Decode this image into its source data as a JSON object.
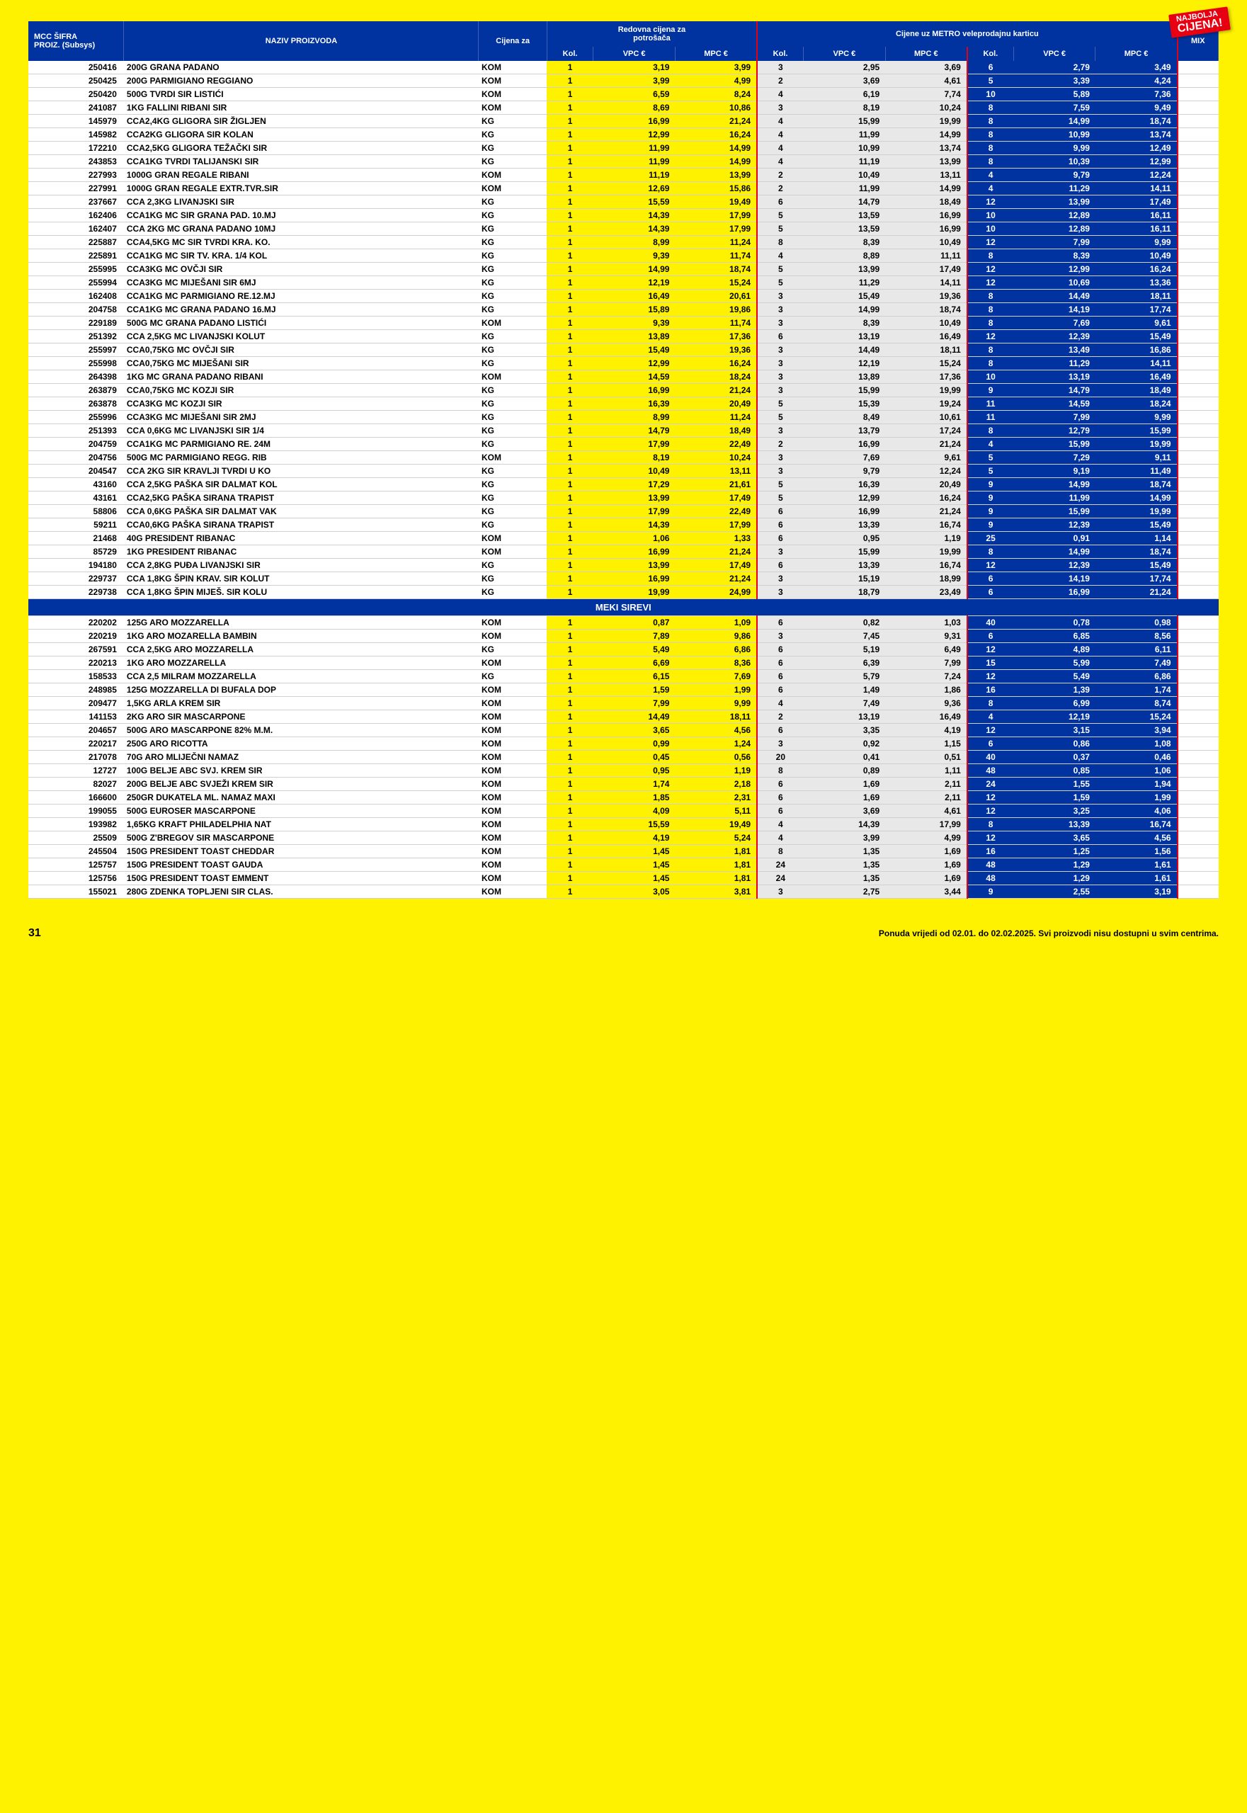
{
  "badge": {
    "line1": "NAJBOLJA",
    "line2": "CIJENA!"
  },
  "headers": {
    "sifra1": "MCC ŠIFRA",
    "sifra2": "PROIZ. (Subsys)",
    "naziv": "NAZIV PROIZVODA",
    "cijenaza": "Cijena za",
    "redovna1": "Redovna cijena za",
    "redovna2": "potrošača",
    "metro": "Cijene uz METRO veleprodajnu karticu",
    "kol": "Kol.",
    "vpc": "VPC €",
    "mpc": "MPC €",
    "mix": "MIX"
  },
  "section2": "MEKI SIREVI",
  "footer": {
    "page": "31",
    "note": "Ponuda vrijedi od 02.01. do 02.02.2025. Svi proizvodi nisu dostupni u svim centrima."
  },
  "rows1": [
    {
      "s": "250416",
      "n": "200G GRANA PADANO",
      "u": "KOM",
      "k1": "1",
      "v1": "3,19",
      "m1": "3,99",
      "k2": "3",
      "v2": "2,95",
      "m2": "3,69",
      "k3": "6",
      "v3": "2,79",
      "m3": "3,49"
    },
    {
      "s": "250425",
      "n": "200G PARMIGIANO REGGIANO",
      "u": "KOM",
      "k1": "1",
      "v1": "3,99",
      "m1": "4,99",
      "k2": "2",
      "v2": "3,69",
      "m2": "4,61",
      "k3": "5",
      "v3": "3,39",
      "m3": "4,24"
    },
    {
      "s": "250420",
      "n": "500G TVRDI SIR LISTIĆI",
      "u": "KOM",
      "k1": "1",
      "v1": "6,59",
      "m1": "8,24",
      "k2": "4",
      "v2": "6,19",
      "m2": "7,74",
      "k3": "10",
      "v3": "5,89",
      "m3": "7,36"
    },
    {
      "s": "241087",
      "n": "1KG FALLINI RIBANI SIR",
      "u": "KOM",
      "k1": "1",
      "v1": "8,69",
      "m1": "10,86",
      "k2": "3",
      "v2": "8,19",
      "m2": "10,24",
      "k3": "8",
      "v3": "7,59",
      "m3": "9,49"
    },
    {
      "s": "145979",
      "n": "CCA2,4KG GLIGORA SIR ŽIGLJEN",
      "u": "KG",
      "k1": "1",
      "v1": "16,99",
      "m1": "21,24",
      "k2": "4",
      "v2": "15,99",
      "m2": "19,99",
      "k3": "8",
      "v3": "14,99",
      "m3": "18,74"
    },
    {
      "s": "145982",
      "n": "CCA2KG GLIGORA SIR KOLAN",
      "u": "KG",
      "k1": "1",
      "v1": "12,99",
      "m1": "16,24",
      "k2": "4",
      "v2": "11,99",
      "m2": "14,99",
      "k3": "8",
      "v3": "10,99",
      "m3": "13,74"
    },
    {
      "s": "172210",
      "n": "CCA2,5KG GLIGORA TEŽAČKI SIR",
      "u": "KG",
      "k1": "1",
      "v1": "11,99",
      "m1": "14,99",
      "k2": "4",
      "v2": "10,99",
      "m2": "13,74",
      "k3": "8",
      "v3": "9,99",
      "m3": "12,49"
    },
    {
      "s": "243853",
      "n": "CCA1KG TVRDI TALIJANSKI SIR",
      "u": "KG",
      "k1": "1",
      "v1": "11,99",
      "m1": "14,99",
      "k2": "4",
      "v2": "11,19",
      "m2": "13,99",
      "k3": "8",
      "v3": "10,39",
      "m3": "12,99"
    },
    {
      "s": "227993",
      "n": "1000G GRAN REGALE RIBANI",
      "u": "KOM",
      "k1": "1",
      "v1": "11,19",
      "m1": "13,99",
      "k2": "2",
      "v2": "10,49",
      "m2": "13,11",
      "k3": "4",
      "v3": "9,79",
      "m3": "12,24"
    },
    {
      "s": "227991",
      "n": "1000G GRAN REGALE EXTR.TVR.SIR",
      "u": "KOM",
      "k1": "1",
      "v1": "12,69",
      "m1": "15,86",
      "k2": "2",
      "v2": "11,99",
      "m2": "14,99",
      "k3": "4",
      "v3": "11,29",
      "m3": "14,11"
    },
    {
      "s": "237667",
      "n": "CCA 2,3KG LIVANJSKI SIR",
      "u": "KG",
      "k1": "1",
      "v1": "15,59",
      "m1": "19,49",
      "k2": "6",
      "v2": "14,79",
      "m2": "18,49",
      "k3": "12",
      "v3": "13,99",
      "m3": "17,49"
    },
    {
      "s": "162406",
      "n": "CCA1KG MC SIR GRANA PAD. 10.MJ",
      "u": "KG",
      "k1": "1",
      "v1": "14,39",
      "m1": "17,99",
      "k2": "5",
      "v2": "13,59",
      "m2": "16,99",
      "k3": "10",
      "v3": "12,89",
      "m3": "16,11"
    },
    {
      "s": "162407",
      "n": "CCA 2KG MC GRANA PADANO 10MJ",
      "u": "KG",
      "k1": "1",
      "v1": "14,39",
      "m1": "17,99",
      "k2": "5",
      "v2": "13,59",
      "m2": "16,99",
      "k3": "10",
      "v3": "12,89",
      "m3": "16,11"
    },
    {
      "s": "225887",
      "n": "CCA4,5KG MC SIR TVRDI KRA. KO.",
      "u": "KG",
      "k1": "1",
      "v1": "8,99",
      "m1": "11,24",
      "k2": "8",
      "v2": "8,39",
      "m2": "10,49",
      "k3": "12",
      "v3": "7,99",
      "m3": "9,99"
    },
    {
      "s": "225891",
      "n": "CCA1KG MC SIR TV. KRA. 1/4 KOL",
      "u": "KG",
      "k1": "1",
      "v1": "9,39",
      "m1": "11,74",
      "k2": "4",
      "v2": "8,89",
      "m2": "11,11",
      "k3": "8",
      "v3": "8,39",
      "m3": "10,49"
    },
    {
      "s": "255995",
      "n": "CCA3KG MC OVČJI SIR",
      "u": "KG",
      "k1": "1",
      "v1": "14,99",
      "m1": "18,74",
      "k2": "5",
      "v2": "13,99",
      "m2": "17,49",
      "k3": "12",
      "v3": "12,99",
      "m3": "16,24"
    },
    {
      "s": "255994",
      "n": "CCA3KG MC MIJEŠANI SIR 6MJ",
      "u": "KG",
      "k1": "1",
      "v1": "12,19",
      "m1": "15,24",
      "k2": "5",
      "v2": "11,29",
      "m2": "14,11",
      "k3": "12",
      "v3": "10,69",
      "m3": "13,36"
    },
    {
      "s": "162408",
      "n": "CCA1KG MC PARMIGIANO RE.12.MJ",
      "u": "KG",
      "k1": "1",
      "v1": "16,49",
      "m1": "20,61",
      "k2": "3",
      "v2": "15,49",
      "m2": "19,36",
      "k3": "8",
      "v3": "14,49",
      "m3": "18,11"
    },
    {
      "s": "204758",
      "n": "CCA1KG MC GRANA PADANO 16.MJ",
      "u": "KG",
      "k1": "1",
      "v1": "15,89",
      "m1": "19,86",
      "k2": "3",
      "v2": "14,99",
      "m2": "18,74",
      "k3": "8",
      "v3": "14,19",
      "m3": "17,74"
    },
    {
      "s": "229189",
      "n": "500G MC GRANA PADANO LISTIĆI",
      "u": "KOM",
      "k1": "1",
      "v1": "9,39",
      "m1": "11,74",
      "k2": "3",
      "v2": "8,39",
      "m2": "10,49",
      "k3": "8",
      "v3": "7,69",
      "m3": "9,61"
    },
    {
      "s": "251392",
      "n": "CCA 2,5KG MC LIVANJSKI KOLUT",
      "u": "KG",
      "k1": "1",
      "v1": "13,89",
      "m1": "17,36",
      "k2": "6",
      "v2": "13,19",
      "m2": "16,49",
      "k3": "12",
      "v3": "12,39",
      "m3": "15,49"
    },
    {
      "s": "255997",
      "n": "CCA0,75KG MC OVČJI SIR",
      "u": "KG",
      "k1": "1",
      "v1": "15,49",
      "m1": "19,36",
      "k2": "3",
      "v2": "14,49",
      "m2": "18,11",
      "k3": "8",
      "v3": "13,49",
      "m3": "16,86"
    },
    {
      "s": "255998",
      "n": "CCA0,75KG MC MIJEŠANI SIR",
      "u": "KG",
      "k1": "1",
      "v1": "12,99",
      "m1": "16,24",
      "k2": "3",
      "v2": "12,19",
      "m2": "15,24",
      "k3": "8",
      "v3": "11,29",
      "m3": "14,11"
    },
    {
      "s": "264398",
      "n": "1KG MC GRANA PADANO RIBANI",
      "u": "KOM",
      "k1": "1",
      "v1": "14,59",
      "m1": "18,24",
      "k2": "3",
      "v2": "13,89",
      "m2": "17,36",
      "k3": "10",
      "v3": "13,19",
      "m3": "16,49"
    },
    {
      "s": "263879",
      "n": "CCA0,75KG MC KOZJI SIR",
      "u": "KG",
      "k1": "1",
      "v1": "16,99",
      "m1": "21,24",
      "k2": "3",
      "v2": "15,99",
      "m2": "19,99",
      "k3": "9",
      "v3": "14,79",
      "m3": "18,49"
    },
    {
      "s": "263878",
      "n": "CCA3KG MC KOZJI SIR",
      "u": "KG",
      "k1": "1",
      "v1": "16,39",
      "m1": "20,49",
      "k2": "5",
      "v2": "15,39",
      "m2": "19,24",
      "k3": "11",
      "v3": "14,59",
      "m3": "18,24"
    },
    {
      "s": "255996",
      "n": "CCA3KG MC MIJEŠANI SIR 2MJ",
      "u": "KG",
      "k1": "1",
      "v1": "8,99",
      "m1": "11,24",
      "k2": "5",
      "v2": "8,49",
      "m2": "10,61",
      "k3": "11",
      "v3": "7,99",
      "m3": "9,99"
    },
    {
      "s": "251393",
      "n": "CCA 0,6KG MC LIVANJSKI SIR 1/4",
      "u": "KG",
      "k1": "1",
      "v1": "14,79",
      "m1": "18,49",
      "k2": "3",
      "v2": "13,79",
      "m2": "17,24",
      "k3": "8",
      "v3": "12,79",
      "m3": "15,99"
    },
    {
      "s": "204759",
      "n": "CCA1KG MC PARMIGIANO RE. 24M",
      "u": "KG",
      "k1": "1",
      "v1": "17,99",
      "m1": "22,49",
      "k2": "2",
      "v2": "16,99",
      "m2": "21,24",
      "k3": "4",
      "v3": "15,99",
      "m3": "19,99"
    },
    {
      "s": "204756",
      "n": "500G MC PARMIGIANO REGG. RIB",
      "u": "KOM",
      "k1": "1",
      "v1": "8,19",
      "m1": "10,24",
      "k2": "3",
      "v2": "7,69",
      "m2": "9,61",
      "k3": "5",
      "v3": "7,29",
      "m3": "9,11"
    },
    {
      "s": "204547",
      "n": "CCA 2KG SIR KRAVLJI TVRDI U KO",
      "u": "KG",
      "k1": "1",
      "v1": "10,49",
      "m1": "13,11",
      "k2": "3",
      "v2": "9,79",
      "m2": "12,24",
      "k3": "5",
      "v3": "9,19",
      "m3": "11,49"
    },
    {
      "s": "43160",
      "n": "CCA 2,5KG PAŠKA SIR DALMAT KOL",
      "u": "KG",
      "k1": "1",
      "v1": "17,29",
      "m1": "21,61",
      "k2": "5",
      "v2": "16,39",
      "m2": "20,49",
      "k3": "9",
      "v3": "14,99",
      "m3": "18,74"
    },
    {
      "s": "43161",
      "n": "CCA2,5KG PAŠKA SIRANA TRAPIST",
      "u": "KG",
      "k1": "1",
      "v1": "13,99",
      "m1": "17,49",
      "k2": "5",
      "v2": "12,99",
      "m2": "16,24",
      "k3": "9",
      "v3": "11,99",
      "m3": "14,99"
    },
    {
      "s": "58806",
      "n": "CCA 0,6KG PAŠKA SIR DALMAT VAK",
      "u": "KG",
      "k1": "1",
      "v1": "17,99",
      "m1": "22,49",
      "k2": "6",
      "v2": "16,99",
      "m2": "21,24",
      "k3": "9",
      "v3": "15,99",
      "m3": "19,99"
    },
    {
      "s": "59211",
      "n": "CCA0,6KG PAŠKA SIRANA TRAPIST",
      "u": "KG",
      "k1": "1",
      "v1": "14,39",
      "m1": "17,99",
      "k2": "6",
      "v2": "13,39",
      "m2": "16,74",
      "k3": "9",
      "v3": "12,39",
      "m3": "15,49"
    },
    {
      "s": "21468",
      "n": "40G PRESIDENT RIBANAC",
      "u": "KOM",
      "k1": "1",
      "v1": "1,06",
      "m1": "1,33",
      "k2": "6",
      "v2": "0,95",
      "m2": "1,19",
      "k3": "25",
      "v3": "0,91",
      "m3": "1,14"
    },
    {
      "s": "85729",
      "n": "1KG PRESIDENT RIBANAC",
      "u": "KOM",
      "k1": "1",
      "v1": "16,99",
      "m1": "21,24",
      "k2": "3",
      "v2": "15,99",
      "m2": "19,99",
      "k3": "8",
      "v3": "14,99",
      "m3": "18,74"
    },
    {
      "s": "194180",
      "n": "CCA 2,8KG PUĐA LIVANJSKI SIR",
      "u": "KG",
      "k1": "1",
      "v1": "13,99",
      "m1": "17,49",
      "k2": "6",
      "v2": "13,39",
      "m2": "16,74",
      "k3": "12",
      "v3": "12,39",
      "m3": "15,49"
    },
    {
      "s": "229737",
      "n": "CCA 1,8KG ŠPIN KRAV. SIR KOLUT",
      "u": "KG",
      "k1": "1",
      "v1": "16,99",
      "m1": "21,24",
      "k2": "3",
      "v2": "15,19",
      "m2": "18,99",
      "k3": "6",
      "v3": "14,19",
      "m3": "17,74"
    },
    {
      "s": "229738",
      "n": "CCA 1,8KG ŠPIN MIJEŠ. SIR KOLU",
      "u": "KG",
      "k1": "1",
      "v1": "19,99",
      "m1": "24,99",
      "k2": "3",
      "v2": "18,79",
      "m2": "23,49",
      "k3": "6",
      "v3": "16,99",
      "m3": "21,24"
    }
  ],
  "rows2": [
    {
      "s": "220202",
      "n": "125G ARO MOZZARELLA",
      "u": "KOM",
      "k1": "1",
      "v1": "0,87",
      "m1": "1,09",
      "k2": "6",
      "v2": "0,82",
      "m2": "1,03",
      "k3": "40",
      "v3": "0,78",
      "m3": "0,98"
    },
    {
      "s": "220219",
      "n": "1KG ARO MOZARELLA BAMBIN",
      "u": "KOM",
      "k1": "1",
      "v1": "7,89",
      "m1": "9,86",
      "k2": "3",
      "v2": "7,45",
      "m2": "9,31",
      "k3": "6",
      "v3": "6,85",
      "m3": "8,56"
    },
    {
      "s": "267591",
      "n": "CCA 2,5KG ARO MOZZARELLA",
      "u": "KG",
      "k1": "1",
      "v1": "5,49",
      "m1": "6,86",
      "k2": "6",
      "v2": "5,19",
      "m2": "6,49",
      "k3": "12",
      "v3": "4,89",
      "m3": "6,11"
    },
    {
      "s": "220213",
      "n": "1KG ARO MOZZARELLA",
      "u": "KOM",
      "k1": "1",
      "v1": "6,69",
      "m1": "8,36",
      "k2": "6",
      "v2": "6,39",
      "m2": "7,99",
      "k3": "15",
      "v3": "5,99",
      "m3": "7,49"
    },
    {
      "s": "158533",
      "n": "CCA 2,5 MILRAM MOZZARELLA",
      "u": "KG",
      "k1": "1",
      "v1": "6,15",
      "m1": "7,69",
      "k2": "6",
      "v2": "5,79",
      "m2": "7,24",
      "k3": "12",
      "v3": "5,49",
      "m3": "6,86"
    },
    {
      "s": "248985",
      "n": "125G MOZZARELLA DI BUFALA DOP",
      "u": "KOM",
      "k1": "1",
      "v1": "1,59",
      "m1": "1,99",
      "k2": "6",
      "v2": "1,49",
      "m2": "1,86",
      "k3": "16",
      "v3": "1,39",
      "m3": "1,74"
    },
    {
      "s": "209477",
      "n": "1,5KG ARLA KREM SIR",
      "u": "KOM",
      "k1": "1",
      "v1": "7,99",
      "m1": "9,99",
      "k2": "4",
      "v2": "7,49",
      "m2": "9,36",
      "k3": "8",
      "v3": "6,99",
      "m3": "8,74"
    },
    {
      "s": "141153",
      "n": "2KG ARO SIR MASCARPONE",
      "u": "KOM",
      "k1": "1",
      "v1": "14,49",
      "m1": "18,11",
      "k2": "2",
      "v2": "13,19",
      "m2": "16,49",
      "k3": "4",
      "v3": "12,19",
      "m3": "15,24"
    },
    {
      "s": "204657",
      "n": "500G ARO MASCARPONE 82% M.M.",
      "u": "KOM",
      "k1": "1",
      "v1": "3,65",
      "m1": "4,56",
      "k2": "6",
      "v2": "3,35",
      "m2": "4,19",
      "k3": "12",
      "v3": "3,15",
      "m3": "3,94"
    },
    {
      "s": "220217",
      "n": "250G ARO RICOTTA",
      "u": "KOM",
      "k1": "1",
      "v1": "0,99",
      "m1": "1,24",
      "k2": "3",
      "v2": "0,92",
      "m2": "1,15",
      "k3": "6",
      "v3": "0,86",
      "m3": "1,08"
    },
    {
      "s": "217078",
      "n": "70G ARO MLIJEČNI NAMAZ",
      "u": "KOM",
      "k1": "1",
      "v1": "0,45",
      "m1": "0,56",
      "k2": "20",
      "v2": "0,41",
      "m2": "0,51",
      "k3": "40",
      "v3": "0,37",
      "m3": "0,46"
    },
    {
      "s": "12727",
      "n": "100G BELJE ABC SVJ. KREM SIR",
      "u": "KOM",
      "k1": "1",
      "v1": "0,95",
      "m1": "1,19",
      "k2": "8",
      "v2": "0,89",
      "m2": "1,11",
      "k3": "48",
      "v3": "0,85",
      "m3": "1,06"
    },
    {
      "s": "82027",
      "n": "200G BELJE ABC SVJEŽI KREM SIR",
      "u": "KOM",
      "k1": "1",
      "v1": "1,74",
      "m1": "2,18",
      "k2": "6",
      "v2": "1,69",
      "m2": "2,11",
      "k3": "24",
      "v3": "1,55",
      "m3": "1,94"
    },
    {
      "s": "166600",
      "n": "250GR DUKATELA ML. NAMAZ MAXI",
      "u": "KOM",
      "k1": "1",
      "v1": "1,85",
      "m1": "2,31",
      "k2": "6",
      "v2": "1,69",
      "m2": "2,11",
      "k3": "12",
      "v3": "1,59",
      "m3": "1,99"
    },
    {
      "s": "199055",
      "n": "500G EUROSER MASCARPONE",
      "u": "KOM",
      "k1": "1",
      "v1": "4,09",
      "m1": "5,11",
      "k2": "6",
      "v2": "3,69",
      "m2": "4,61",
      "k3": "12",
      "v3": "3,25",
      "m3": "4,06"
    },
    {
      "s": "193982",
      "n": "1,65KG KRAFT PHILADELPHIA NAT",
      "u": "KOM",
      "k1": "1",
      "v1": "15,59",
      "m1": "19,49",
      "k2": "4",
      "v2": "14,39",
      "m2": "17,99",
      "k3": "8",
      "v3": "13,39",
      "m3": "16,74"
    },
    {
      "s": "25509",
      "n": "500G Z'BREGOV SIR MASCARPONE",
      "u": "KOM",
      "k1": "1",
      "v1": "4,19",
      "m1": "5,24",
      "k2": "4",
      "v2": "3,99",
      "m2": "4,99",
      "k3": "12",
      "v3": "3,65",
      "m3": "4,56"
    },
    {
      "s": "245504",
      "n": "150G PRESIDENT TOAST CHEDDAR",
      "u": "KOM",
      "k1": "1",
      "v1": "1,45",
      "m1": "1,81",
      "k2": "8",
      "v2": "1,35",
      "m2": "1,69",
      "k3": "16",
      "v3": "1,25",
      "m3": "1,56"
    },
    {
      "s": "125757",
      "n": "150G PRESIDENT TOAST GAUDA",
      "u": "KOM",
      "k1": "1",
      "v1": "1,45",
      "m1": "1,81",
      "k2": "24",
      "v2": "1,35",
      "m2": "1,69",
      "k3": "48",
      "v3": "1,29",
      "m3": "1,61"
    },
    {
      "s": "125756",
      "n": "150G PRESIDENT TOAST EMMENT",
      "u": "KOM",
      "k1": "1",
      "v1": "1,45",
      "m1": "1,81",
      "k2": "24",
      "v2": "1,35",
      "m2": "1,69",
      "k3": "48",
      "v3": "1,29",
      "m3": "1,61"
    },
    {
      "s": "155021",
      "n": "280G ZDENKA TOPLJENI SIR CLAS.",
      "u": "KOM",
      "k1": "1",
      "v1": "3,05",
      "m1": "3,81",
      "k2": "3",
      "v2": "2,75",
      "m2": "3,44",
      "k3": "9",
      "v3": "2,55",
      "m3": "3,19"
    }
  ]
}
